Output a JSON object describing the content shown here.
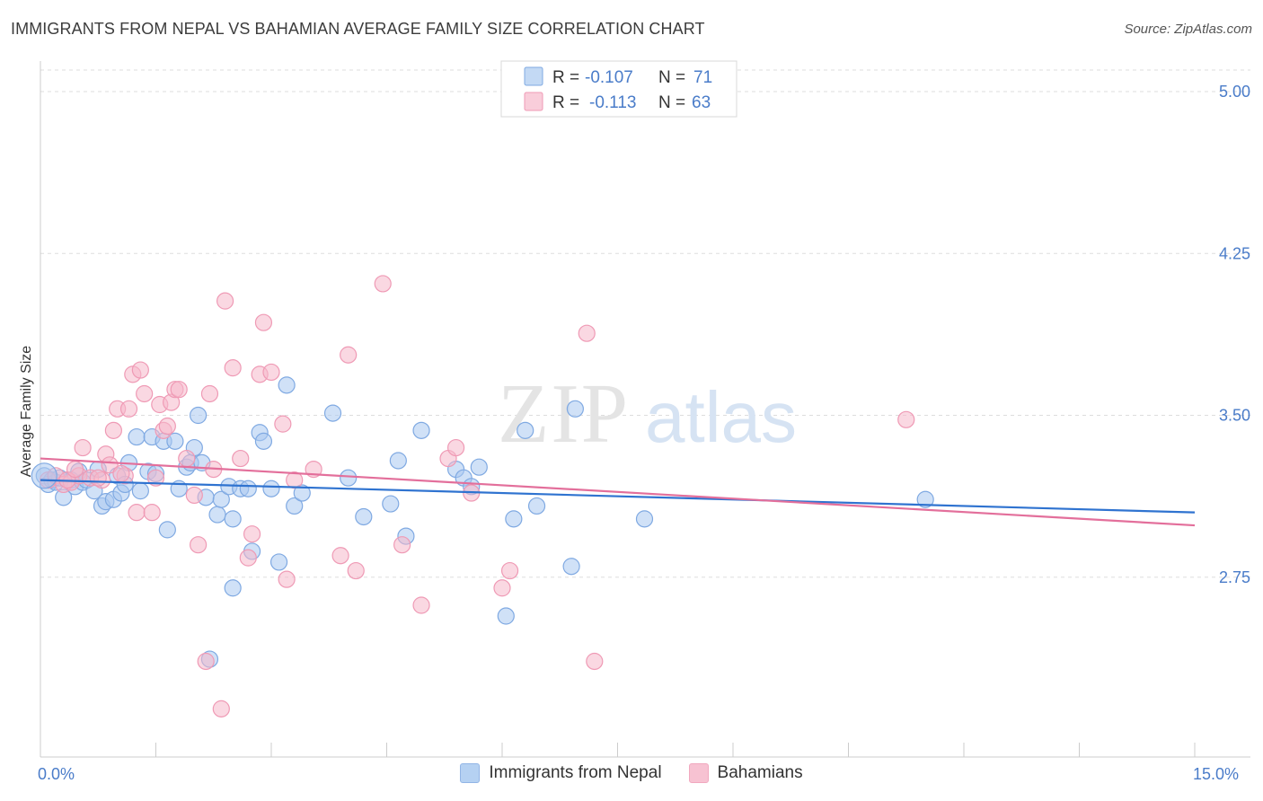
{
  "header": {
    "title": "IMMIGRANTS FROM NEPAL VS BAHAMIAN AVERAGE FAMILY SIZE CORRELATION CHART",
    "source": "Source: ZipAtlas.com"
  },
  "watermark": {
    "zip": "ZIP",
    "atlas": "atlas"
  },
  "colors": {
    "blue_fill": "#a9c9f0",
    "blue_stroke": "#7fa9e2",
    "blue_line": "#2f73d0",
    "pink_fill": "#f6b8cb",
    "pink_stroke": "#ef9ab5",
    "pink_line": "#e36f9b",
    "axis_text": "#4a7cc9",
    "grid": "#dddddd"
  },
  "legend": {
    "r_label": "R =",
    "n_label": "N =",
    "rows": [
      {
        "r": "-0.107",
        "n": "71"
      },
      {
        "r": "-0.113",
        "n": "63"
      }
    ]
  },
  "chart_data": {
    "type": "scatter",
    "ylabel": "Average Family Size",
    "xlabel": "",
    "xlim": [
      0,
      15
    ],
    "ylim": [
      2.0,
      5.1
    ],
    "x_tick_labels": [
      "0.0%",
      "15.0%"
    ],
    "y_ticks": [
      2.75,
      3.5,
      4.25,
      5.0
    ],
    "y_tick_labels": [
      "2.75",
      "3.50",
      "4.25",
      "5.00"
    ],
    "grid": true,
    "series": [
      {
        "name": "Immigrants from Nepal",
        "trend": [
          [
            0,
            3.2
          ],
          [
            15,
            3.05
          ]
        ],
        "points": [
          [
            0.05,
            3.22
          ],
          [
            0.1,
            3.18
          ],
          [
            0.15,
            3.2
          ],
          [
            0.2,
            3.19
          ],
          [
            0.3,
            3.12
          ],
          [
            0.35,
            3.2
          ],
          [
            0.4,
            3.2
          ],
          [
            0.45,
            3.17
          ],
          [
            0.5,
            3.24
          ],
          [
            0.55,
            3.19
          ],
          [
            0.6,
            3.2
          ],
          [
            0.7,
            3.15
          ],
          [
            0.75,
            3.25
          ],
          [
            0.8,
            3.08
          ],
          [
            0.85,
            3.1
          ],
          [
            0.95,
            3.11
          ],
          [
            1.0,
            3.22
          ],
          [
            1.05,
            3.14
          ],
          [
            1.1,
            3.18
          ],
          [
            1.15,
            3.28
          ],
          [
            1.25,
            3.4
          ],
          [
            1.3,
            3.15
          ],
          [
            1.4,
            3.24
          ],
          [
            1.45,
            3.4
          ],
          [
            1.5,
            3.23
          ],
          [
            1.6,
            3.38
          ],
          [
            1.65,
            2.97
          ],
          [
            1.75,
            3.38
          ],
          [
            1.8,
            3.16
          ],
          [
            1.9,
            3.26
          ],
          [
            1.95,
            3.28
          ],
          [
            2.0,
            3.35
          ],
          [
            2.05,
            3.5
          ],
          [
            2.1,
            3.28
          ],
          [
            2.15,
            3.12
          ],
          [
            2.2,
            2.37
          ],
          [
            2.3,
            3.04
          ],
          [
            2.35,
            3.11
          ],
          [
            2.45,
            3.17
          ],
          [
            2.5,
            2.7
          ],
          [
            2.5,
            3.02
          ],
          [
            2.6,
            3.16
          ],
          [
            2.7,
            3.16
          ],
          [
            2.75,
            2.87
          ],
          [
            2.85,
            3.42
          ],
          [
            2.9,
            3.38
          ],
          [
            3.0,
            3.16
          ],
          [
            3.1,
            2.82
          ],
          [
            3.2,
            3.64
          ],
          [
            3.3,
            3.08
          ],
          [
            3.4,
            3.14
          ],
          [
            3.8,
            3.51
          ],
          [
            4.0,
            3.21
          ],
          [
            4.2,
            3.03
          ],
          [
            4.55,
            3.09
          ],
          [
            4.65,
            3.29
          ],
          [
            4.75,
            2.94
          ],
          [
            4.95,
            3.43
          ],
          [
            5.4,
            3.25
          ],
          [
            5.5,
            3.21
          ],
          [
            5.6,
            3.17
          ],
          [
            5.7,
            3.26
          ],
          [
            6.05,
            2.57
          ],
          [
            6.15,
            3.02
          ],
          [
            6.3,
            3.43
          ],
          [
            6.45,
            3.08
          ],
          [
            6.9,
            2.8
          ],
          [
            6.95,
            3.53
          ],
          [
            7.85,
            3.02
          ],
          [
            11.5,
            3.11
          ],
          [
            0.25,
            3.21
          ]
        ]
      },
      {
        "name": "Bahamians",
        "trend": [
          [
            0,
            3.3
          ],
          [
            15,
            2.99
          ]
        ],
        "points": [
          [
            0.1,
            3.2
          ],
          [
            0.2,
            3.22
          ],
          [
            0.3,
            3.18
          ],
          [
            0.4,
            3.19
          ],
          [
            0.5,
            3.22
          ],
          [
            0.55,
            3.35
          ],
          [
            0.65,
            3.21
          ],
          [
            0.8,
            3.2
          ],
          [
            0.85,
            3.32
          ],
          [
            0.9,
            3.27
          ],
          [
            0.95,
            3.43
          ],
          [
            1.0,
            3.53
          ],
          [
            1.1,
            3.22
          ],
          [
            1.15,
            3.53
          ],
          [
            1.2,
            3.69
          ],
          [
            1.25,
            3.05
          ],
          [
            1.3,
            3.71
          ],
          [
            1.35,
            3.6
          ],
          [
            1.45,
            3.05
          ],
          [
            1.5,
            3.21
          ],
          [
            1.55,
            3.55
          ],
          [
            1.6,
            3.43
          ],
          [
            1.65,
            3.45
          ],
          [
            1.7,
            3.56
          ],
          [
            1.75,
            3.62
          ],
          [
            1.8,
            3.62
          ],
          [
            1.9,
            3.3
          ],
          [
            2.0,
            3.13
          ],
          [
            2.05,
            2.9
          ],
          [
            2.15,
            2.36
          ],
          [
            2.2,
            3.6
          ],
          [
            2.25,
            3.25
          ],
          [
            2.35,
            2.14
          ],
          [
            2.4,
            4.03
          ],
          [
            2.5,
            3.72
          ],
          [
            2.6,
            3.3
          ],
          [
            2.7,
            2.84
          ],
          [
            2.75,
            2.95
          ],
          [
            2.85,
            3.69
          ],
          [
            2.9,
            3.93
          ],
          [
            3.0,
            3.7
          ],
          [
            3.15,
            3.46
          ],
          [
            3.2,
            2.74
          ],
          [
            3.3,
            3.2
          ],
          [
            3.55,
            3.25
          ],
          [
            3.9,
            2.85
          ],
          [
            4.0,
            3.78
          ],
          [
            4.1,
            2.78
          ],
          [
            4.45,
            4.11
          ],
          [
            4.7,
            2.9
          ],
          [
            4.95,
            2.62
          ],
          [
            5.3,
            3.3
          ],
          [
            5.4,
            3.35
          ],
          [
            5.6,
            3.14
          ],
          [
            6.0,
            2.7
          ],
          [
            6.1,
            2.78
          ],
          [
            7.1,
            3.88
          ],
          [
            7.2,
            2.36
          ],
          [
            11.25,
            3.48
          ],
          [
            0.35,
            3.2
          ],
          [
            0.45,
            3.25
          ],
          [
            0.75,
            3.21
          ],
          [
            1.05,
            3.23
          ]
        ]
      }
    ]
  },
  "bottom_legend": [
    {
      "label": "Immigrants from Nepal"
    },
    {
      "label": "Bahamians"
    }
  ]
}
